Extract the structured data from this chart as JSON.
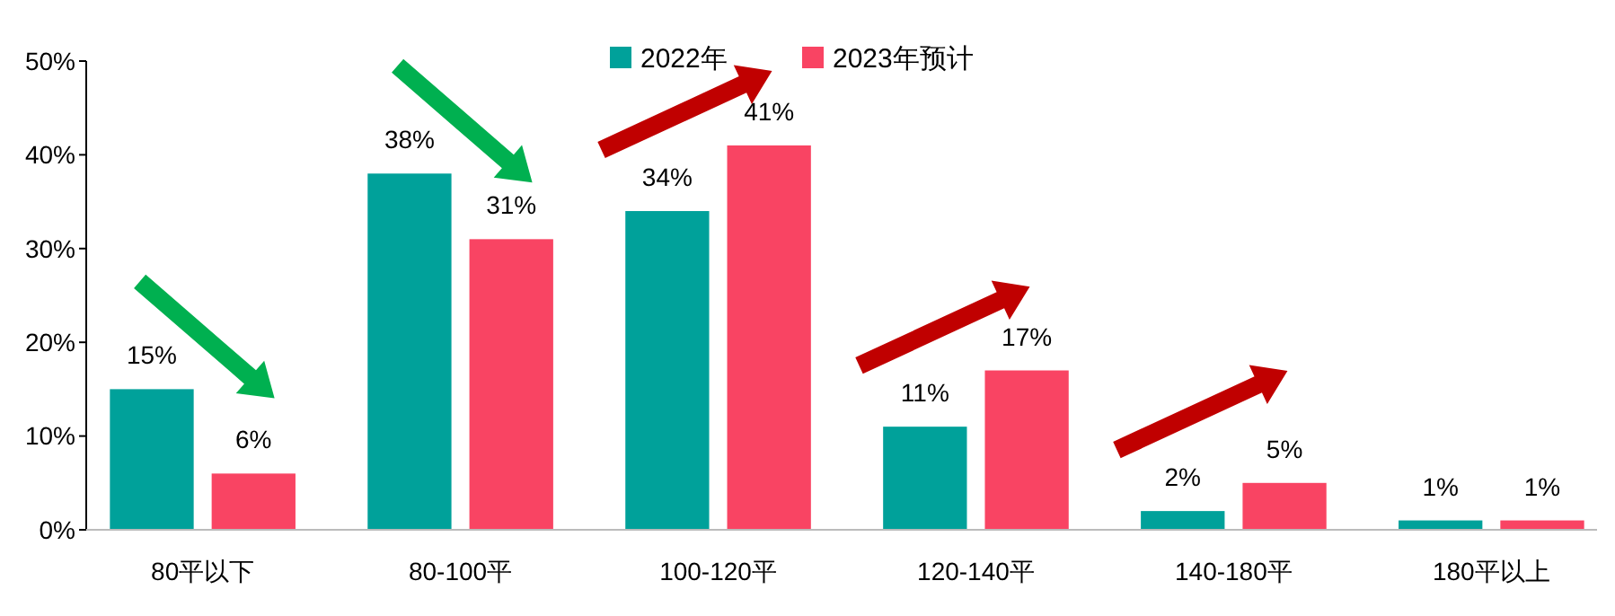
{
  "chart_data": {
    "type": "bar",
    "categories": [
      "80平以下",
      "80-100平",
      "100-120平",
      "120-140平",
      "140-180平",
      "180平以上"
    ],
    "series": [
      {
        "name": "2022年",
        "color": "#00a19a",
        "values": [
          15,
          38,
          34,
          11,
          2,
          1
        ],
        "value_labels": [
          "15%",
          "38%",
          "34%",
          "11%",
          "2%",
          "1%"
        ]
      },
      {
        "name": "2023年预计",
        "color": "#f94463",
        "values": [
          6,
          31,
          41,
          17,
          5,
          1
        ],
        "value_labels": [
          "6%",
          "31%",
          "41%",
          "17%",
          "5%",
          "1%"
        ]
      }
    ],
    "ylim": [
      0,
      50
    ],
    "yticks": [
      {
        "value": 0,
        "label": "0%"
      },
      {
        "value": 10,
        "label": "10%"
      },
      {
        "value": 20,
        "label": "20%"
      },
      {
        "value": 30,
        "label": "30%"
      },
      {
        "value": 40,
        "label": "40%"
      },
      {
        "value": 50,
        "label": "50%"
      }
    ],
    "legend": "top"
  }
}
